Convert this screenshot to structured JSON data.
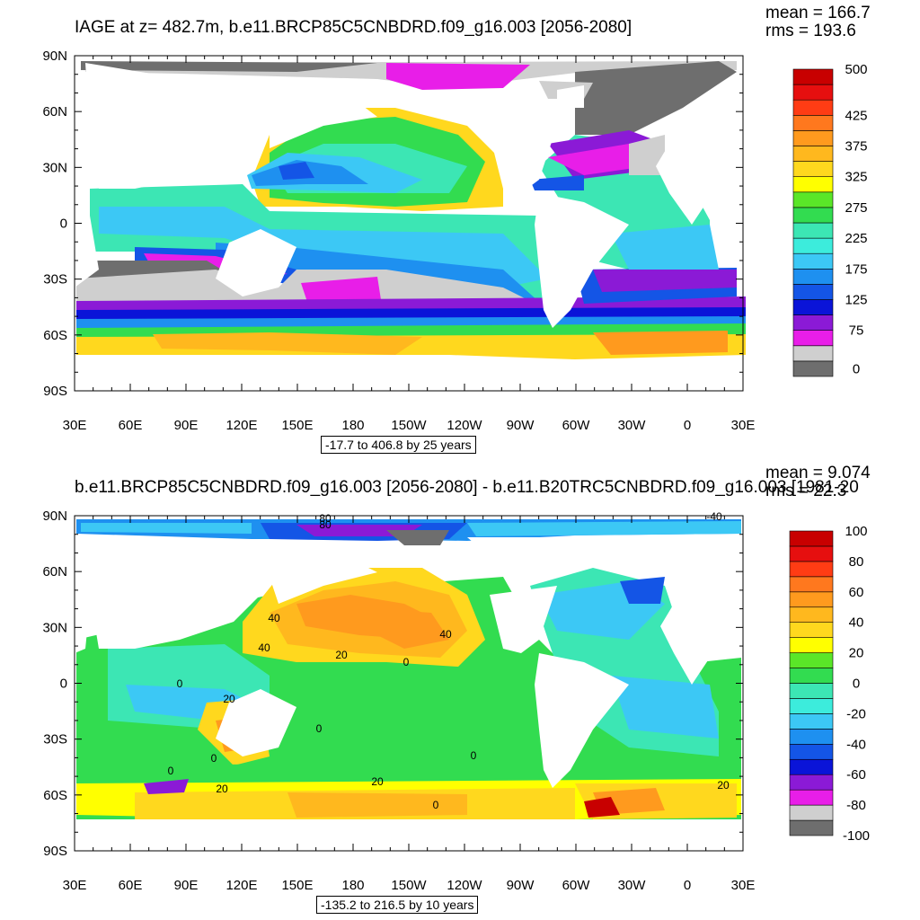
{
  "top": {
    "title": "IAGE at z= 482.7m, b.e11.BRCP85C5CNBDRD.f09_g16.003 [2056-2080]",
    "mean": "mean = 166.7",
    "rms": "rms = 193.6",
    "range_note": "-17.7 to 406.8 by 25 years",
    "colorbar": {
      "colors": [
        "#6e6e6e",
        "#cfcfcf",
        "#e81ee8",
        "#8b1ad6",
        "#0a14d8",
        "#1455e6",
        "#1e90f0",
        "#3cc8f5",
        "#3cecdc",
        "#3ce6b4",
        "#32dc50",
        "#5ae628",
        "#ffff00",
        "#ffd81e",
        "#ffb81e",
        "#ff9a1e",
        "#ff781e",
        "#ff3c14",
        "#e60f0f",
        "#c80000"
      ],
      "labels": [
        "0",
        "75",
        "125",
        "175",
        "225",
        "275",
        "325",
        "375",
        "425",
        "500"
      ]
    }
  },
  "bottom": {
    "title": "b.e11.BRCP85C5CNBDRD.f09_g16.003 [2056-2080] - b.e11.B20TRC5CNBDRD.f09_g16.003 [1981-20",
    "mean": "mean = 9.074",
    "rms": "rms = 22.3",
    "range_note": "-135.2 to 216.5 by 10 years",
    "colorbar": {
      "colors": [
        "#6e6e6e",
        "#cfcfcf",
        "#e81ee8",
        "#8b1ad6",
        "#0a14d8",
        "#1455e6",
        "#1e90f0",
        "#3cc8f5",
        "#3cecdc",
        "#3ce6b4",
        "#32dc50",
        "#5ae628",
        "#ffff00",
        "#ffd81e",
        "#ffb81e",
        "#ff9a1e",
        "#ff781e",
        "#ff3c14",
        "#e60f0f",
        "#c80000"
      ],
      "labels": [
        "-100",
        "-80",
        "-60",
        "-40",
        "-20",
        "0",
        "20",
        "40",
        "60",
        "80",
        "100"
      ]
    },
    "contour_labels": [
      "80",
      "80",
      "-40",
      "40",
      "40",
      "20",
      "0",
      "40",
      "0",
      "20",
      "0",
      "0",
      "0",
      "0",
      "20",
      "20",
      "0",
      "20"
    ]
  },
  "axes": {
    "lat_labels": [
      "90N",
      "60N",
      "30N",
      "0",
      "30S",
      "60S",
      "90S"
    ],
    "lon_labels": [
      "30E",
      "60E",
      "90E",
      "120E",
      "150E",
      "180",
      "150W",
      "120W",
      "90W",
      "60W",
      "30W",
      "0",
      "30E"
    ]
  }
}
